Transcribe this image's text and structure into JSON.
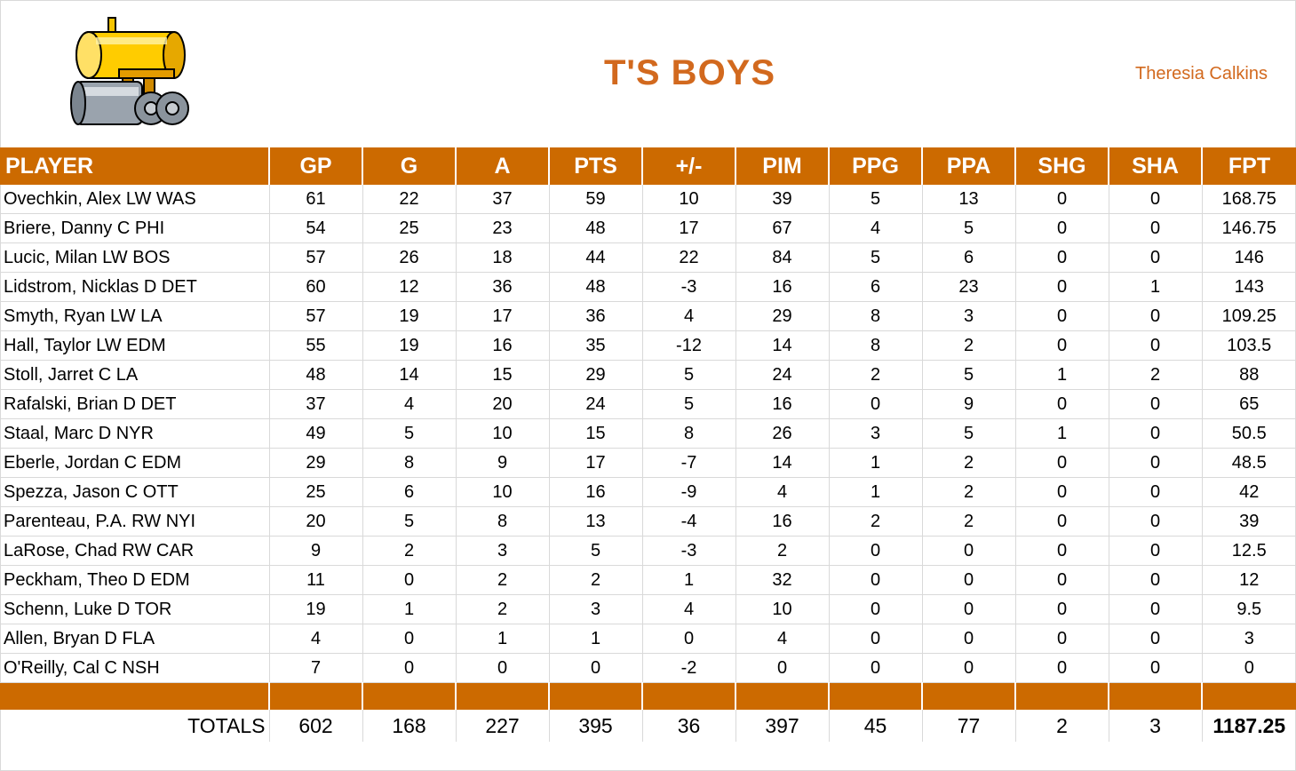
{
  "header": {
    "team_name": "T'S BOYS",
    "owner": "Theresia Calkins",
    "logo_icon": "steamroller-icon"
  },
  "colors": {
    "accent": "#cc6a00",
    "title": "#d2691e"
  },
  "table": {
    "columns": [
      "PLAYER",
      "GP",
      "G",
      "A",
      "PTS",
      "+/-",
      "PIM",
      "PPG",
      "PPA",
      "SHG",
      "SHA",
      "FPT"
    ],
    "rows": [
      [
        "Ovechkin, Alex LW WAS",
        "61",
        "22",
        "37",
        "59",
        "10",
        "39",
        "5",
        "13",
        "0",
        "0",
        "168.75"
      ],
      [
        "Briere, Danny C PHI",
        "54",
        "25",
        "23",
        "48",
        "17",
        "67",
        "4",
        "5",
        "0",
        "0",
        "146.75"
      ],
      [
        "Lucic, Milan LW BOS",
        "57",
        "26",
        "18",
        "44",
        "22",
        "84",
        "5",
        "6",
        "0",
        "0",
        "146"
      ],
      [
        "Lidstrom, Nicklas D DET",
        "60",
        "12",
        "36",
        "48",
        "-3",
        "16",
        "6",
        "23",
        "0",
        "1",
        "143"
      ],
      [
        "Smyth, Ryan LW LA",
        "57",
        "19",
        "17",
        "36",
        "4",
        "29",
        "8",
        "3",
        "0",
        "0",
        "109.25"
      ],
      [
        "Hall, Taylor LW EDM",
        "55",
        "19",
        "16",
        "35",
        "-12",
        "14",
        "8",
        "2",
        "0",
        "0",
        "103.5"
      ],
      [
        "Stoll, Jarret C LA",
        "48",
        "14",
        "15",
        "29",
        "5",
        "24",
        "2",
        "5",
        "1",
        "2",
        "88"
      ],
      [
        "Rafalski, Brian D DET",
        "37",
        "4",
        "20",
        "24",
        "5",
        "16",
        "0",
        "9",
        "0",
        "0",
        "65"
      ],
      [
        "Staal, Marc D NYR",
        "49",
        "5",
        "10",
        "15",
        "8",
        "26",
        "3",
        "5",
        "1",
        "0",
        "50.5"
      ],
      [
        "Eberle, Jordan C EDM",
        "29",
        "8",
        "9",
        "17",
        "-7",
        "14",
        "1",
        "2",
        "0",
        "0",
        "48.5"
      ],
      [
        "Spezza, Jason C OTT",
        "25",
        "6",
        "10",
        "16",
        "-9",
        "4",
        "1",
        "2",
        "0",
        "0",
        "42"
      ],
      [
        "Parenteau, P.A. RW NYI",
        "20",
        "5",
        "8",
        "13",
        "-4",
        "16",
        "2",
        "2",
        "0",
        "0",
        "39"
      ],
      [
        "LaRose, Chad RW CAR",
        "9",
        "2",
        "3",
        "5",
        "-3",
        "2",
        "0",
        "0",
        "0",
        "0",
        "12.5"
      ],
      [
        "Peckham, Theo D EDM",
        "11",
        "0",
        "2",
        "2",
        "1",
        "32",
        "0",
        "0",
        "0",
        "0",
        "12"
      ],
      [
        "Schenn, Luke D TOR",
        "19",
        "1",
        "2",
        "3",
        "4",
        "10",
        "0",
        "0",
        "0",
        "0",
        "9.5"
      ],
      [
        "Allen, Bryan D FLA",
        "4",
        "0",
        "1",
        "1",
        "0",
        "4",
        "0",
        "0",
        "0",
        "0",
        "3"
      ],
      [
        "O'Reilly, Cal C NSH",
        "7",
        "0",
        "0",
        "0",
        "-2",
        "0",
        "0",
        "0",
        "0",
        "0",
        "0"
      ]
    ],
    "totals": [
      "TOTALS",
      "602",
      "168",
      "227",
      "395",
      "36",
      "397",
      "45",
      "77",
      "2",
      "3",
      "1187.25"
    ]
  }
}
